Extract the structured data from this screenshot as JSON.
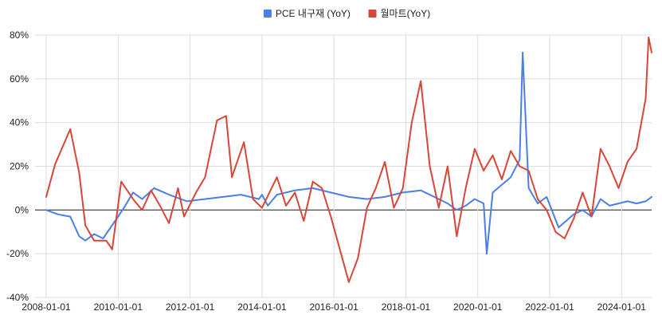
{
  "chart_data": {
    "type": "line",
    "title": "",
    "xlabel": "",
    "ylabel": "",
    "ylim": [
      -40,
      80
    ],
    "grid": true,
    "legend_position": "top",
    "y_ticks": [
      -40,
      -20,
      0,
      20,
      40,
      60,
      80
    ],
    "y_tick_labels": [
      "-40%",
      "-20%",
      "0%",
      "20%",
      "40%",
      "60%",
      "80%"
    ],
    "x_ticks": [
      "2008-01-01",
      "2010-01-01",
      "2012-01-01",
      "2014-01-01",
      "2016-01-01",
      "2018-01-01",
      "2020-01-01",
      "2022-01-01",
      "2024-01-01"
    ],
    "x_range": [
      "2008-01-01",
      "2024-11-01"
    ],
    "series": [
      {
        "name": "PCE 내구재 (YoY)",
        "color": "#4A7FE5",
        "points": [
          [
            "2008-01-01",
            0
          ],
          [
            "2008-05-01",
            -2
          ],
          [
            "2008-09-01",
            -3
          ],
          [
            "2008-12-01",
            -12
          ],
          [
            "2009-02-01",
            -14
          ],
          [
            "2009-05-01",
            -11
          ],
          [
            "2009-08-01",
            -13
          ],
          [
            "2009-12-01",
            -5
          ],
          [
            "2010-03-01",
            1
          ],
          [
            "2010-06-01",
            8
          ],
          [
            "2010-09-01",
            5
          ],
          [
            "2011-01-01",
            10
          ],
          [
            "2011-06-01",
            7
          ],
          [
            "2011-12-01",
            4
          ],
          [
            "2012-06-01",
            5
          ],
          [
            "2012-12-01",
            6
          ],
          [
            "2013-06-01",
            7
          ],
          [
            "2013-12-01",
            5
          ],
          [
            "2014-01-01",
            7
          ],
          [
            "2014-03-01",
            2
          ],
          [
            "2014-06-01",
            7
          ],
          [
            "2014-12-01",
            9
          ],
          [
            "2015-06-01",
            10
          ],
          [
            "2015-12-01",
            8
          ],
          [
            "2016-06-01",
            6
          ],
          [
            "2016-12-01",
            5
          ],
          [
            "2017-06-01",
            6
          ],
          [
            "2017-12-01",
            8
          ],
          [
            "2018-06-01",
            9
          ],
          [
            "2018-12-01",
            5
          ],
          [
            "2019-03-01",
            3
          ],
          [
            "2019-06-01",
            0
          ],
          [
            "2019-09-01",
            2
          ],
          [
            "2019-12-01",
            5
          ],
          [
            "2020-03-01",
            3
          ],
          [
            "2020-04-01",
            -20
          ],
          [
            "2020-06-01",
            8
          ],
          [
            "2020-12-01",
            15
          ],
          [
            "2021-03-01",
            23
          ],
          [
            "2021-04-01",
            72
          ],
          [
            "2021-06-01",
            10
          ],
          [
            "2021-09-01",
            3
          ],
          [
            "2021-12-01",
            6
          ],
          [
            "2022-04-01",
            -8
          ],
          [
            "2022-09-01",
            -2
          ],
          [
            "2022-12-01",
            0
          ],
          [
            "2023-03-01",
            -3
          ],
          [
            "2023-06-01",
            5
          ],
          [
            "2023-09-01",
            2
          ],
          [
            "2023-12-01",
            3
          ],
          [
            "2024-03-01",
            4
          ],
          [
            "2024-06-01",
            3
          ],
          [
            "2024-09-01",
            4
          ],
          [
            "2024-11-01",
            6
          ]
        ]
      },
      {
        "name": "월마트(YoY)",
        "color": "#D94638",
        "points": [
          [
            "2008-01-01",
            6
          ],
          [
            "2008-04-01",
            21
          ],
          [
            "2008-09-01",
            37
          ],
          [
            "2008-12-01",
            17
          ],
          [
            "2009-02-01",
            -7
          ],
          [
            "2009-05-01",
            -14
          ],
          [
            "2009-09-01",
            -14
          ],
          [
            "2009-11-01",
            -18
          ],
          [
            "2010-02-01",
            13
          ],
          [
            "2010-06-01",
            5
          ],
          [
            "2010-09-01",
            0
          ],
          [
            "2010-12-01",
            9
          ],
          [
            "2011-03-01",
            2
          ],
          [
            "2011-06-01",
            -6
          ],
          [
            "2011-09-01",
            10
          ],
          [
            "2011-11-01",
            -3
          ],
          [
            "2012-03-01",
            8
          ],
          [
            "2012-06-01",
            15
          ],
          [
            "2012-10-01",
            41
          ],
          [
            "2013-01-01",
            43
          ],
          [
            "2013-03-01",
            15
          ],
          [
            "2013-07-01",
            31
          ],
          [
            "2013-10-01",
            5
          ],
          [
            "2014-01-01",
            1
          ],
          [
            "2014-06-01",
            15
          ],
          [
            "2014-09-01",
            2
          ],
          [
            "2014-12-01",
            8
          ],
          [
            "2015-03-01",
            -5
          ],
          [
            "2015-06-01",
            13
          ],
          [
            "2015-09-01",
            10
          ],
          [
            "2015-12-01",
            -3
          ],
          [
            "2016-03-01",
            -18
          ],
          [
            "2016-06-01",
            -33
          ],
          [
            "2016-09-01",
            -22
          ],
          [
            "2016-12-01",
            1
          ],
          [
            "2017-03-01",
            10
          ],
          [
            "2017-06-01",
            22
          ],
          [
            "2017-09-01",
            1
          ],
          [
            "2017-12-01",
            10
          ],
          [
            "2018-03-01",
            40
          ],
          [
            "2018-06-01",
            59
          ],
          [
            "2018-09-01",
            20
          ],
          [
            "2018-12-01",
            1
          ],
          [
            "2019-03-01",
            20
          ],
          [
            "2019-06-01",
            -12
          ],
          [
            "2019-09-01",
            10
          ],
          [
            "2019-12-01",
            28
          ],
          [
            "2020-03-01",
            18
          ],
          [
            "2020-06-01",
            25
          ],
          [
            "2020-09-01",
            14
          ],
          [
            "2020-12-01",
            27
          ],
          [
            "2021-03-01",
            20
          ],
          [
            "2021-06-01",
            18
          ],
          [
            "2021-09-01",
            5
          ],
          [
            "2021-12-01",
            0
          ],
          [
            "2022-03-01",
            -10
          ],
          [
            "2022-06-01",
            -13
          ],
          [
            "2022-09-01",
            -4
          ],
          [
            "2022-12-01",
            8
          ],
          [
            "2023-03-01",
            -3
          ],
          [
            "2023-06-01",
            28
          ],
          [
            "2023-09-01",
            20
          ],
          [
            "2023-12-01",
            10
          ],
          [
            "2024-03-01",
            22
          ],
          [
            "2024-06-01",
            28
          ],
          [
            "2024-09-01",
            51
          ],
          [
            "2024-10-01",
            79
          ],
          [
            "2024-11-01",
            72
          ]
        ]
      }
    ]
  }
}
